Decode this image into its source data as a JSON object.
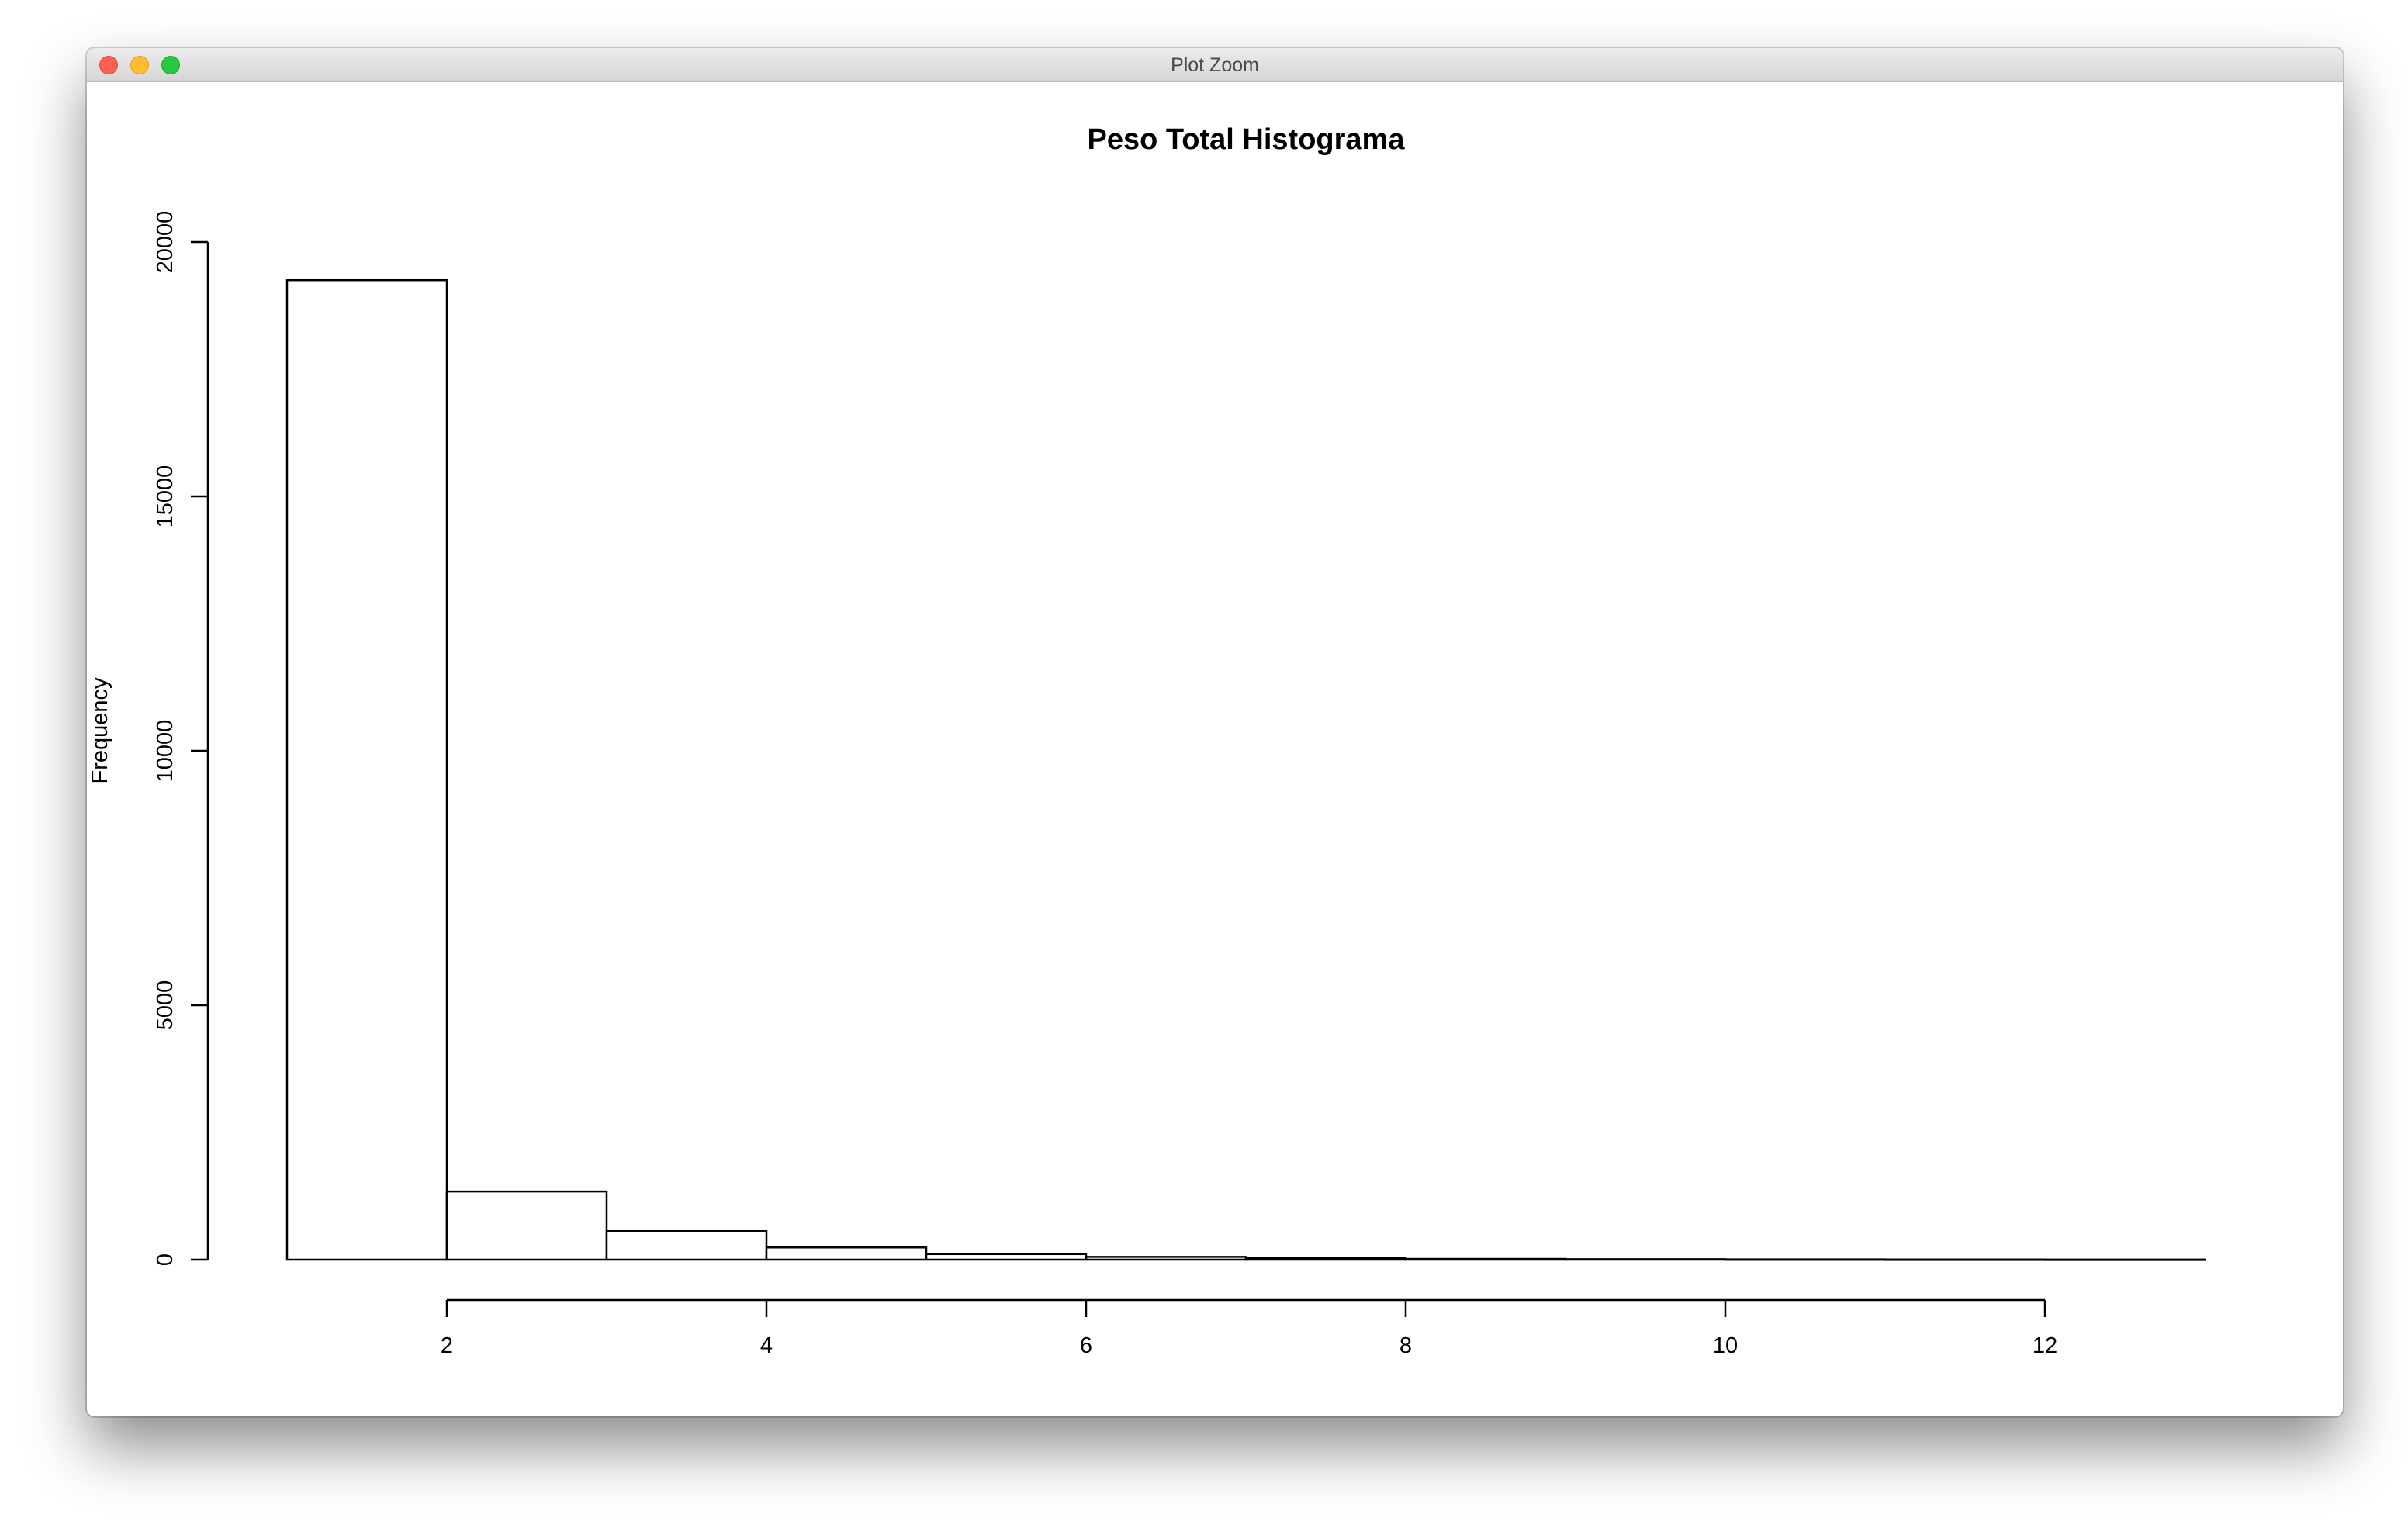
{
  "window": {
    "title": "Plot Zoom",
    "controls": [
      "close-icon",
      "minimize-icon",
      "maximize-icon"
    ]
  },
  "chart_data": {
    "type": "bar",
    "subtype": "histogram",
    "title": "Peso Total Histograma",
    "xlabel": "",
    "ylabel": "Frequency",
    "bins": [
      {
        "x0": 1,
        "x1": 2,
        "count": 19250
      },
      {
        "x0": 2,
        "x1": 3,
        "count": 1340
      },
      {
        "x0": 3,
        "x1": 4,
        "count": 560
      },
      {
        "x0": 4,
        "x1": 5,
        "count": 240
      },
      {
        "x0": 5,
        "x1": 6,
        "count": 110
      },
      {
        "x0": 6,
        "x1": 7,
        "count": 55
      },
      {
        "x0": 7,
        "x1": 8,
        "count": 28
      },
      {
        "x0": 8,
        "x1": 9,
        "count": 15
      },
      {
        "x0": 9,
        "x1": 10,
        "count": 9
      },
      {
        "x0": 10,
        "x1": 11,
        "count": 5
      },
      {
        "x0": 11,
        "x1": 12,
        "count": 3
      },
      {
        "x0": 12,
        "x1": 13,
        "count": 2
      }
    ],
    "xlim": [
      1,
      13
    ],
    "ylim": [
      0,
      20000
    ],
    "xticks": [
      2,
      4,
      6,
      8,
      10,
      12
    ],
    "xtick_labels": [
      "2",
      "4",
      "6",
      "8",
      "10",
      "12"
    ],
    "yticks": [
      0,
      5000,
      10000,
      15000,
      20000
    ],
    "ytick_labels": [
      "0",
      "5000",
      "10000",
      "15000",
      "20000"
    ],
    "grid": false,
    "legend": "none",
    "bar_fill": "#ffffff",
    "bar_stroke": "#000000"
  }
}
